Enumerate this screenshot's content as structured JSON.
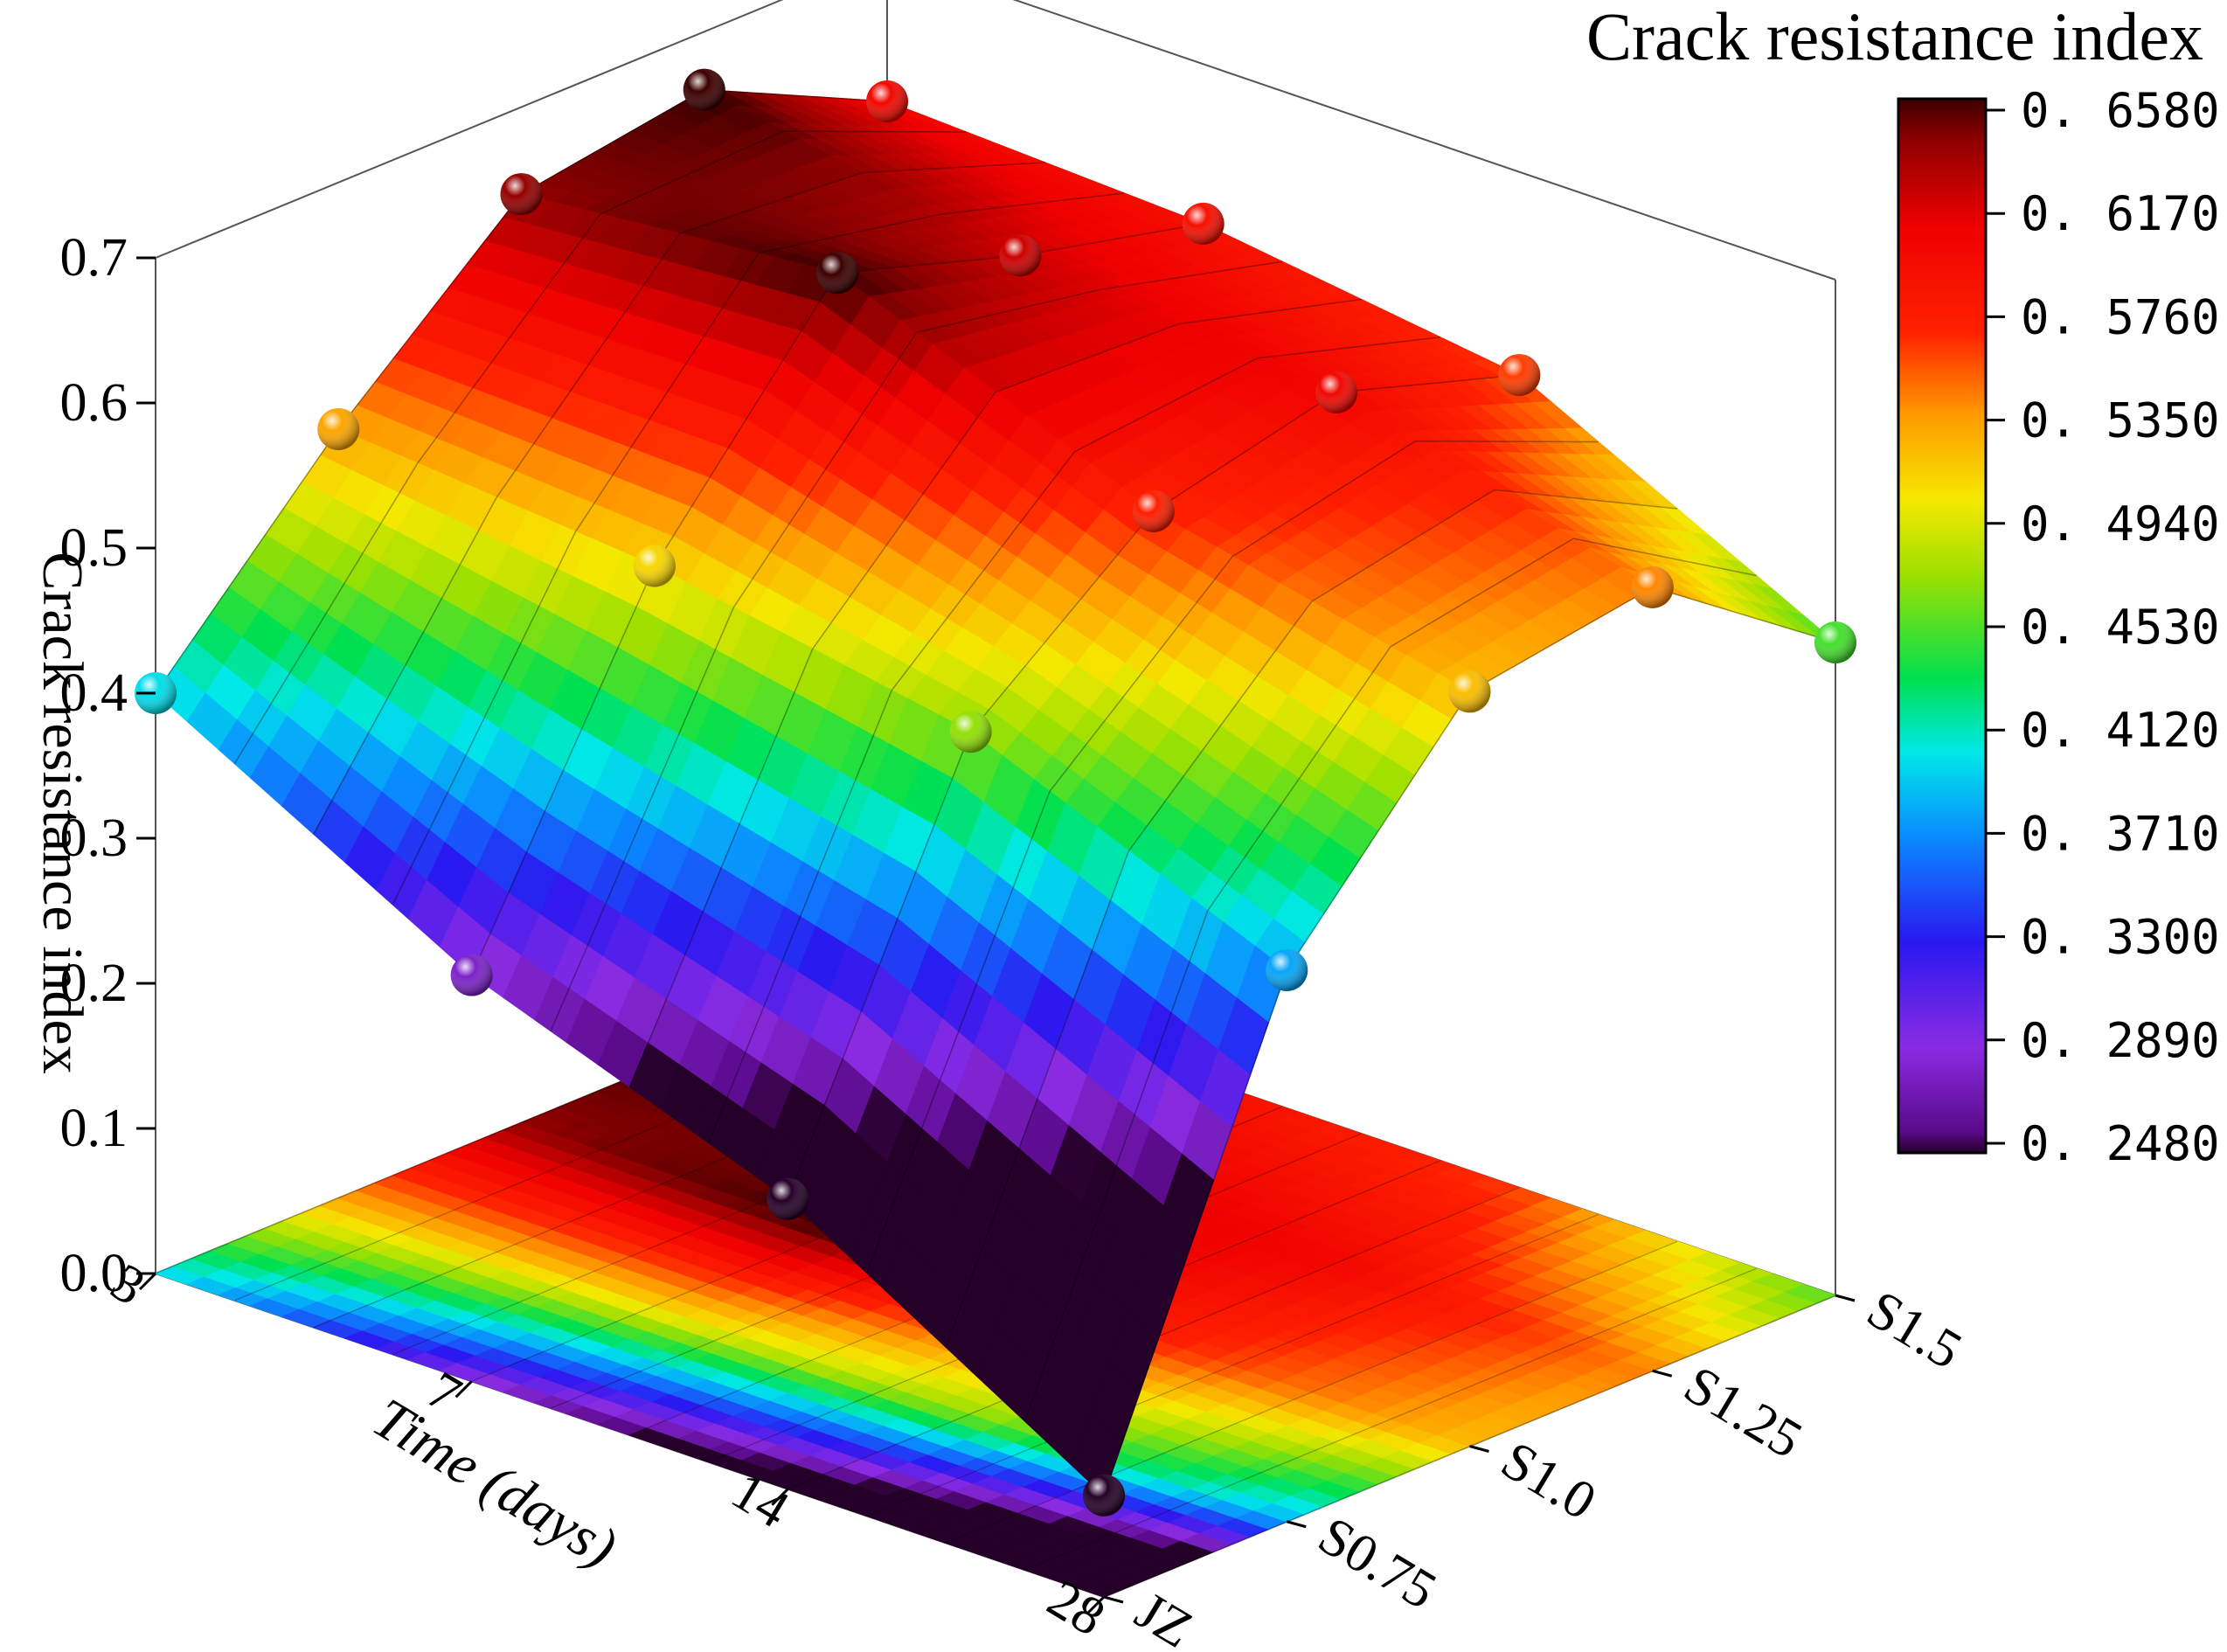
{
  "chart_data": {
    "type": "surface3d",
    "title": "",
    "zlabel": "Crack resistance index",
    "xlabel": "Time (days)",
    "ylabel": "",
    "zlim": [
      0,
      0.7
    ],
    "z_ticks": [
      "0.0",
      "0.1",
      "0.2",
      "0.3",
      "0.4",
      "0.5",
      "0.6",
      "0.7"
    ],
    "x_ticks": [
      "3",
      "7",
      "14",
      "28"
    ],
    "x": [
      3,
      7,
      14,
      28
    ],
    "y": [
      "JZ",
      "S0.75",
      "S1.0",
      "S1.25",
      "S1.5"
    ],
    "z": [
      [
        0.4,
        0.28,
        0.2,
        0.07
      ],
      [
        0.53,
        0.51,
        0.47,
        0.38
      ],
      [
        0.64,
        0.66,
        0.57,
        0.52
      ],
      [
        0.66,
        0.62,
        0.6,
        0.54
      ],
      [
        0.6,
        0.59,
        0.56,
        0.45
      ]
    ],
    "colorbar": {
      "title": "Crack resistance index",
      "ticks": [
        "0. 2480",
        "0. 2890",
        "0. 3300",
        "0. 3710",
        "0. 4120",
        "0. 4530",
        "0. 4940",
        "0. 5350",
        "0. 5760",
        "0. 6170",
        "0. 6580"
      ],
      "range": [
        0.248,
        0.658
      ]
    },
    "projection_on_floor": true,
    "grid": false,
    "legend": "right"
  }
}
